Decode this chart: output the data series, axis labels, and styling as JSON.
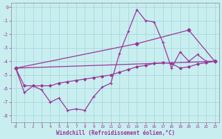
{
  "xlabel": "Windchill (Refroidissement éolien,°C)",
  "background_color": "#c8eef0",
  "grid_color": "#aad8dc",
  "line_color": "#993399",
  "xlim": [
    -0.5,
    23.5
  ],
  "ylim": [
    -8.5,
    0.3
  ],
  "yticks": [
    0,
    -1,
    -2,
    -3,
    -4,
    -5,
    -6,
    -7,
    -8
  ],
  "xticks": [
    0,
    1,
    2,
    3,
    4,
    5,
    6,
    7,
    8,
    9,
    10,
    11,
    12,
    13,
    14,
    15,
    16,
    17,
    18,
    19,
    20,
    21,
    22,
    23
  ],
  "line1_x": [
    0,
    1,
    2,
    3,
    4,
    5,
    6,
    7,
    8,
    9,
    10,
    11,
    12,
    13,
    14,
    15,
    16,
    17,
    18,
    19,
    20,
    21,
    22,
    23
  ],
  "line1_y": [
    -4.5,
    -6.3,
    -5.8,
    -6.1,
    -7.0,
    -6.7,
    -7.6,
    -7.5,
    -7.6,
    -6.6,
    -5.9,
    -5.6,
    -3.4,
    -1.8,
    -0.2,
    -1.0,
    -1.1,
    -2.6,
    -4.5,
    -3.3,
    -4.0,
    -3.5,
    -4.0,
    -4.0
  ],
  "line2_x": [
    0,
    1,
    2,
    3,
    4,
    5,
    6,
    7,
    8,
    9,
    10,
    11,
    12,
    13,
    14,
    15,
    16,
    17,
    18,
    19,
    20,
    21,
    22,
    23
  ],
  "line2_y": [
    -4.5,
    -5.8,
    -5.8,
    -5.8,
    -5.8,
    -5.6,
    -5.5,
    -5.4,
    -5.3,
    -5.2,
    -5.1,
    -5.0,
    -4.8,
    -4.6,
    -4.4,
    -4.3,
    -4.15,
    -4.1,
    -4.15,
    -4.5,
    -4.4,
    -4.2,
    -4.1,
    -4.0
  ],
  "line3_x": [
    0,
    23
  ],
  "line3_y": [
    -4.5,
    -4.0
  ],
  "line4_x": [
    0,
    14,
    20,
    23
  ],
  "line4_y": [
    -4.5,
    -2.7,
    -1.7,
    -4.0
  ]
}
